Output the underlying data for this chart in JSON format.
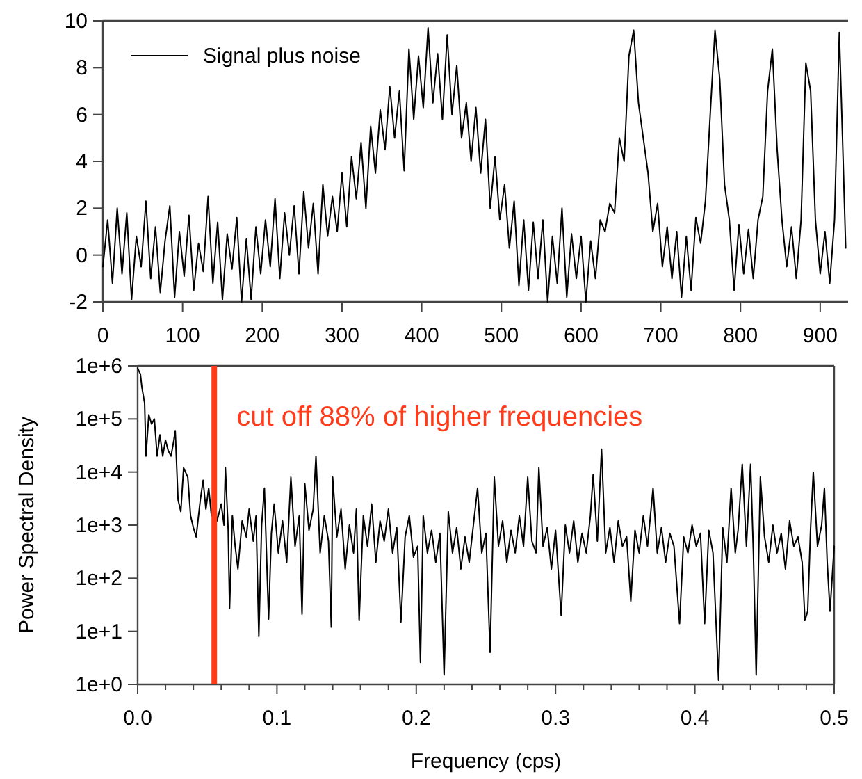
{
  "chart_data": [
    {
      "type": "line",
      "legend": "top left",
      "xlim": [
        0,
        935
      ],
      "ylim": [
        -2,
        10
      ],
      "xticks": [
        0,
        100,
        200,
        300,
        400,
        500,
        600,
        700,
        800,
        900
      ],
      "yticks": [
        -2,
        0,
        2,
        4,
        6,
        8,
        10
      ],
      "x": [
        0,
        6,
        12,
        18,
        24,
        30,
        36,
        42,
        48,
        54,
        60,
        66,
        72,
        78,
        84,
        90,
        96,
        102,
        108,
        114,
        120,
        126,
        132,
        138,
        144,
        150,
        156,
        162,
        168,
        174,
        180,
        186,
        192,
        198,
        204,
        210,
        216,
        222,
        228,
        234,
        240,
        246,
        252,
        258,
        264,
        270,
        276,
        282,
        288,
        294,
        300,
        306,
        312,
        318,
        324,
        330,
        336,
        342,
        348,
        354,
        360,
        366,
        372,
        378,
        384,
        390,
        396,
        402,
        408,
        414,
        420,
        426,
        432,
        438,
        444,
        450,
        456,
        462,
        468,
        474,
        480,
        486,
        492,
        498,
        504,
        510,
        516,
        522,
        528,
        534,
        540,
        546,
        552,
        558,
        564,
        570,
        576,
        582,
        588,
        594,
        600,
        606,
        612,
        618,
        624,
        630,
        636,
        642,
        648,
        654,
        660,
        666,
        672,
        678,
        684,
        690,
        696,
        702,
        708,
        714,
        720,
        726,
        732,
        738,
        744,
        750,
        756,
        762,
        768,
        774,
        780,
        786,
        792,
        798,
        804,
        810,
        816,
        822,
        828,
        834,
        840,
        846,
        852,
        858,
        864,
        870,
        876,
        882,
        888,
        894,
        900,
        906,
        912,
        918,
        924,
        928,
        932
      ],
      "series": [
        {
          "name": "Signal plus noise",
          "color": "#000000",
          "values": [
            -0.5,
            1.5,
            -1.2,
            2.0,
            -0.8,
            1.8,
            -1.9,
            0.8,
            -0.5,
            2.3,
            -1.0,
            1.2,
            -1.6,
            0.6,
            2.1,
            -1.8,
            1.0,
            -0.9,
            1.7,
            -1.5,
            0.5,
            -0.7,
            2.5,
            -1.2,
            1.4,
            -1.9,
            0.9,
            -0.6,
            1.6,
            -2.0,
            0.7,
            -1.9,
            1.2,
            -0.8,
            1.5,
            -0.5,
            2.4,
            -1.0,
            1.8,
            0.0,
            2.1,
            -0.8,
            2.7,
            0.3,
            2.2,
            -0.8,
            3.0,
            0.8,
            2.5,
            1.0,
            3.5,
            1.2,
            4.2,
            2.4,
            4.8,
            2.0,
            5.5,
            3.5,
            6.2,
            4.5,
            7.2,
            5.0,
            7.0,
            3.6,
            8.8,
            5.8,
            8.5,
            6.3,
            9.7,
            6.5,
            8.6,
            5.8,
            9.4,
            6.0,
            8.1,
            5.0,
            6.5,
            4.0,
            6.3,
            3.5,
            5.8,
            2.0,
            4.2,
            1.5,
            3.0,
            0.3,
            2.3,
            -1.3,
            1.5,
            -1.5,
            1.4,
            -1.0,
            1.5,
            -2.0,
            0.8,
            -1.2,
            2.0,
            -1.8,
            0.9,
            -1.0,
            0.8,
            -2.0,
            0.6,
            -1.0,
            1.5,
            1.0,
            2.2,
            1.8,
            5.0,
            4.0,
            8.5,
            9.6,
            6.5,
            5.0,
            3.5,
            1.0,
            2.2,
            -0.5,
            1.2,
            -1.0,
            1.0,
            -1.8,
            0.8,
            -1.5,
            1.6,
            0.5,
            2.3,
            6.0,
            9.6,
            7.5,
            3.0,
            1.5,
            -1.5,
            1.3,
            -0.8,
            1.1,
            -1.0,
            1.5,
            2.5,
            7.0,
            8.8,
            4.5,
            1.5,
            -0.5,
            1.2,
            -1.0,
            1.5,
            8.2,
            7.0,
            1.5,
            -0.8,
            1.0,
            -1.2,
            1.5,
            9.5,
            5.0,
            0.3
          ]
        }
      ]
    },
    {
      "type": "line",
      "log": "y",
      "xlabel": "Frequency (cps)",
      "ylabel": "Power Spectral Density",
      "xlim": [
        0,
        0.5
      ],
      "ylim": [
        1,
        1000000
      ],
      "xticks": [
        {
          "value": 0,
          "label": "0.0"
        },
        {
          "value": 0.02,
          "label": null
        },
        {
          "value": 0.04,
          "label": null
        },
        {
          "value": 0.06,
          "label": null
        },
        {
          "value": 0.08,
          "label": null
        },
        {
          "value": 0.1,
          "label": "0.1"
        },
        {
          "value": 0.12,
          "label": null
        },
        {
          "value": 0.14,
          "label": null
        },
        {
          "value": 0.16,
          "label": null
        },
        {
          "value": 0.18,
          "label": null
        },
        {
          "value": 0.2,
          "label": "0.2"
        },
        {
          "value": 0.22,
          "label": null
        },
        {
          "value": 0.24,
          "label": null
        },
        {
          "value": 0.26,
          "label": null
        },
        {
          "value": 0.28,
          "label": null
        },
        {
          "value": 0.3,
          "label": "0.3"
        },
        {
          "value": 0.32,
          "label": null
        },
        {
          "value": 0.34,
          "label": null
        },
        {
          "value": 0.36,
          "label": null
        },
        {
          "value": 0.38,
          "label": null
        },
        {
          "value": 0.4,
          "label": "0.4"
        },
        {
          "value": 0.42,
          "label": null
        },
        {
          "value": 0.44,
          "label": null
        },
        {
          "value": 0.46,
          "label": null
        },
        {
          "value": 0.48,
          "label": null
        },
        {
          "value": 0.5,
          "label": "0.5"
        }
      ],
      "yticks": [
        {
          "value": 1,
          "label": "1e+0"
        },
        {
          "value": 10,
          "label": "1e+1"
        },
        {
          "value": 100,
          "label": "1e+2"
        },
        {
          "value": 1000,
          "label": "1e+3"
        },
        {
          "value": 10000,
          "label": "1e+4"
        },
        {
          "value": 100000,
          "label": "1e+5"
        },
        {
          "value": 1000000,
          "label": "1e+6"
        }
      ],
      "ref_lines": [
        {
          "axis": "x",
          "value": 0.055,
          "label": "cut off 88% of higher frequencies",
          "color": "#ff3b1a"
        }
      ],
      "x": [
        0,
        0.002,
        0.003,
        0.005,
        0.006,
        0.008,
        0.01,
        0.012,
        0.014,
        0.016,
        0.018,
        0.02,
        0.022,
        0.024,
        0.026,
        0.027,
        0.029,
        0.031,
        0.033,
        0.036,
        0.038,
        0.04,
        0.042,
        0.045,
        0.047,
        0.049,
        0.051,
        0.053,
        0.055,
        0.057,
        0.06,
        0.062,
        0.063,
        0.065,
        0.066,
        0.068,
        0.07,
        0.072,
        0.075,
        0.078,
        0.08,
        0.083,
        0.085,
        0.087,
        0.089,
        0.091,
        0.094,
        0.096,
        0.098,
        0.101,
        0.104,
        0.107,
        0.11,
        0.113,
        0.116,
        0.118,
        0.12,
        0.123,
        0.126,
        0.128,
        0.131,
        0.134,
        0.137,
        0.139,
        0.14,
        0.143,
        0.146,
        0.149,
        0.152,
        0.155,
        0.157,
        0.159,
        0.162,
        0.165,
        0.168,
        0.171,
        0.174,
        0.177,
        0.18,
        0.183,
        0.186,
        0.189,
        0.192,
        0.195,
        0.198,
        0.201,
        0.203,
        0.205,
        0.208,
        0.211,
        0.214,
        0.217,
        0.22,
        0.223,
        0.226,
        0.229,
        0.232,
        0.235,
        0.238,
        0.241,
        0.244,
        0.247,
        0.25,
        0.253,
        0.256,
        0.259,
        0.262,
        0.265,
        0.268,
        0.271,
        0.274,
        0.277,
        0.28,
        0.283,
        0.286,
        0.288,
        0.291,
        0.294,
        0.297,
        0.3,
        0.304,
        0.307,
        0.31,
        0.313,
        0.316,
        0.319,
        0.322,
        0.325,
        0.327,
        0.33,
        0.333,
        0.336,
        0.339,
        0.342,
        0.345,
        0.348,
        0.351,
        0.354,
        0.357,
        0.36,
        0.363,
        0.366,
        0.37,
        0.373,
        0.376,
        0.379,
        0.382,
        0.385,
        0.389,
        0.392,
        0.395,
        0.398,
        0.401,
        0.404,
        0.407,
        0.41,
        0.413,
        0.417,
        0.42,
        0.423,
        0.426,
        0.429,
        0.431,
        0.434,
        0.437,
        0.44,
        0.442,
        0.444,
        0.447,
        0.45,
        0.453,
        0.456,
        0.459,
        0.462,
        0.465,
        0.468,
        0.471,
        0.474,
        0.477,
        0.479,
        0.481,
        0.483,
        0.485,
        0.488,
        0.491,
        0.493,
        0.495,
        0.497,
        0.5
      ],
      "series": [
        {
          "color": "#000000",
          "values": [
            900000,
            700000,
            400000,
            200000,
            20000,
            120000,
            80000,
            100000,
            20000,
            50000,
            20000,
            40000,
            25000,
            20000,
            40000,
            60000,
            3000,
            1800,
            12000,
            8000,
            1500,
            900,
            600,
            3000,
            7000,
            2000,
            5000,
            1500,
            4000,
            1200,
            2500,
            1000,
            12000,
            800,
            27,
            1500,
            400,
            150,
            1200,
            600,
            2000,
            500,
            1500,
            8,
            1000,
            5000,
            17,
            700,
            2500,
            300,
            1200,
            200,
            8000,
            400,
            1500,
            21,
            6000,
            800,
            2000,
            20000,
            300,
            1500,
            500,
            12,
            8000,
            600,
            2000,
            150,
            1000,
            300,
            2000,
            16,
            1500,
            400,
            2500,
            200,
            1200,
            500,
            2000,
            300,
            900,
            15,
            600,
            1500,
            250,
            400,
            2.6,
            1500,
            300,
            800,
            200,
            700,
            1.5,
            1800,
            300,
            900,
            150,
            600,
            200,
            1000,
            5000,
            300,
            700,
            4,
            8000,
            400,
            1200,
            200,
            800,
            300,
            1500,
            400,
            8000,
            500,
            300,
            12000,
            400,
            900,
            150,
            800,
            20,
            1000,
            300,
            1200,
            200,
            700,
            300,
            1500,
            9000,
            500,
            27000,
            300,
            900,
            200,
            1200,
            400,
            600,
            37,
            800,
            300,
            1500,
            400,
            5000,
            300,
            900,
            200,
            700,
            400,
            14,
            600,
            300,
            1000,
            400,
            700,
            14,
            800,
            300,
            1.2,
            900,
            200,
            5000,
            300,
            800,
            14000,
            400,
            14000,
            300,
            1.5,
            8000,
            600,
            200,
            1000,
            300,
            700,
            150,
            1200,
            400,
            600,
            200,
            16,
            24,
            800,
            10000,
            400,
            1000,
            5000,
            200,
            24,
            400
          ]
        }
      ]
    }
  ]
}
